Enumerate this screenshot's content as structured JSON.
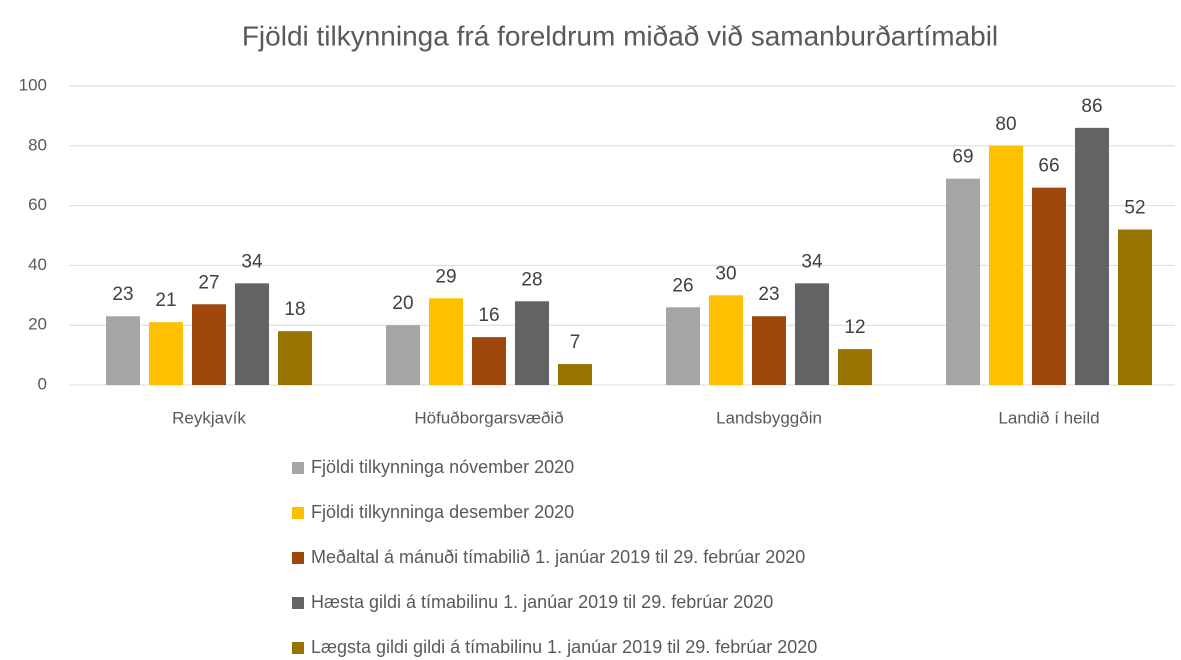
{
  "chart_data": {
    "type": "bar",
    "title": "Fjöldi tilkynninga frá foreldrum miðað við samanburðartímabil",
    "categories": [
      "Reykjavík",
      "Höfuðborgarsvæðið",
      "Landsbyggðin",
      "Landið í heild"
    ],
    "series": [
      {
        "name": "Fjöldi tilkynninga nóvember 2020",
        "color": "#a5a5a5",
        "values": [
          23,
          20,
          26,
          69
        ]
      },
      {
        "name": "Fjöldi tilkynninga desember 2020",
        "color": "#ffc000",
        "values": [
          21,
          29,
          30,
          80
        ]
      },
      {
        "name": "Meðaltal á mánuði tímabilið 1. janúar 2019 til 29. febrúar 2020",
        "color": "#9e480e",
        "values": [
          27,
          16,
          23,
          66
        ]
      },
      {
        "name": "Hæsta gildi á tímabilinu 1. janúar 2019 til 29. febrúar 2020",
        "color": "#636363",
        "values": [
          34,
          28,
          34,
          86
        ]
      },
      {
        "name": "Lægsta gildi gildi á tímabilinu 1. janúar 2019 til 29. febrúar 2020",
        "color": "#997300",
        "values": [
          18,
          7,
          12,
          52
        ]
      }
    ],
    "ylim": [
      0,
      100
    ],
    "yticks": [
      0,
      20,
      40,
      60,
      80,
      100
    ],
    "grid": true,
    "legend": "bottom"
  }
}
